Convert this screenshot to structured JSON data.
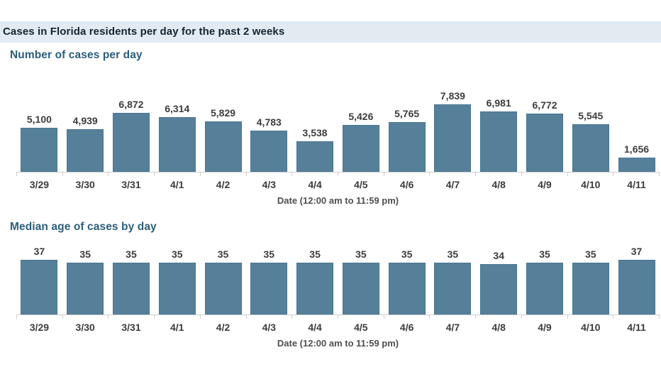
{
  "page": {
    "header_title": "Cases in Florida residents per day for the past 2 weeks"
  },
  "colors": {
    "header_band_bg": "#e2ebf2",
    "header_title_text": "#13242e",
    "section_heading_text": "#2b5e7c",
    "bar_fill": "#56809a",
    "bar_border": "#48748f",
    "value_label_text": "#3c3c3c",
    "tick_label_text": "#3c3c3c",
    "axis_caption_text": "#4f4f4f",
    "axis_line": "#cfcfcf"
  },
  "chart_data": [
    {
      "type": "bar",
      "title": "Number of cases per day",
      "xlabel": "Date (12:00 am to 11:59 pm)",
      "ylabel": "",
      "categories": [
        "3/29",
        "3/30",
        "3/31",
        "4/1",
        "4/2",
        "4/3",
        "4/4",
        "4/5",
        "4/6",
        "4/7",
        "4/8",
        "4/9",
        "4/10",
        "4/11"
      ],
      "values": [
        5100,
        4939,
        6872,
        6314,
        5829,
        4783,
        3538,
        5426,
        5765,
        7839,
        6981,
        6772,
        5545,
        1656
      ],
      "value_labels": [
        "5,100",
        "4,939",
        "6,872",
        "6,314",
        "5,829",
        "4,783",
        "3,538",
        "5,426",
        "5,765",
        "7,839",
        "6,981",
        "6,772",
        "5,545",
        "1,656"
      ],
      "ylim": [
        0,
        8000
      ],
      "grid": false,
      "legend": null,
      "value_label_position": "above-bars"
    },
    {
      "type": "bar",
      "title": "Median age of cases by day",
      "xlabel": "Date (12:00 am to 11:59 pm)",
      "ylabel": "",
      "categories": [
        "3/29",
        "3/30",
        "3/31",
        "4/1",
        "4/2",
        "4/3",
        "4/4",
        "4/5",
        "4/6",
        "4/7",
        "4/8",
        "4/9",
        "4/10",
        "4/11"
      ],
      "values": [
        37,
        35,
        35,
        35,
        35,
        35,
        35,
        35,
        35,
        35,
        34,
        35,
        35,
        37
      ],
      "value_labels": [
        "37",
        "35",
        "35",
        "35",
        "35",
        "35",
        "35",
        "35",
        "35",
        "35",
        "34",
        "35",
        "35",
        "37"
      ],
      "ylim": [
        0,
        40
      ],
      "grid": false,
      "legend": null,
      "value_label_position": "above-bars"
    }
  ]
}
